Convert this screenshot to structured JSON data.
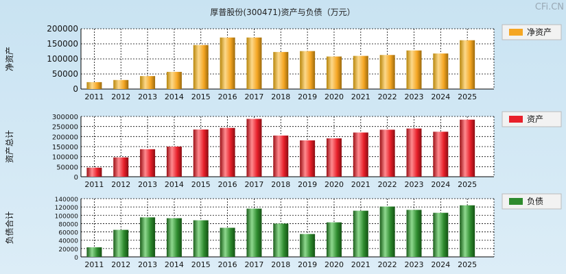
{
  "title": "厚普股份(300471)资产与负债（万元）",
  "watermark": "CFi.CN",
  "chart_data": [
    {
      "type": "bar",
      "name": "net-assets",
      "ylabel": "净资产",
      "legend": "净资产",
      "color": "#f5a623",
      "categories": [
        "2011",
        "2012",
        "2013",
        "2014",
        "2015",
        "2016",
        "2017",
        "2018",
        "2019",
        "2020",
        "2021",
        "2022",
        "2023",
        "2024",
        "2025"
      ],
      "values": [
        23000,
        30000,
        43000,
        57000,
        146000,
        171000,
        171000,
        123000,
        126000,
        108000,
        110000,
        113000,
        128000,
        118000,
        162000
      ],
      "ylim": [
        0,
        200000
      ],
      "yticks": [
        0,
        50000,
        100000,
        150000,
        200000
      ]
    },
    {
      "type": "bar",
      "name": "total-assets",
      "ylabel": "资产总计",
      "legend": "资产",
      "color": "#e8202a",
      "categories": [
        "2011",
        "2012",
        "2013",
        "2014",
        "2015",
        "2016",
        "2017",
        "2018",
        "2019",
        "2020",
        "2021",
        "2022",
        "2023",
        "2024",
        "2025"
      ],
      "values": [
        45000,
        96000,
        137000,
        150000,
        235000,
        243000,
        288000,
        205000,
        181000,
        191000,
        220000,
        234000,
        240000,
        224000,
        284000
      ],
      "ylim": [
        0,
        300000
      ],
      "yticks": [
        0,
        50000,
        100000,
        150000,
        200000,
        250000,
        300000
      ]
    },
    {
      "type": "bar",
      "name": "total-liabilities",
      "ylabel": "负债合计",
      "legend": "负债",
      "color": "#2e8b2e",
      "categories": [
        "2011",
        "2012",
        "2013",
        "2014",
        "2015",
        "2016",
        "2017",
        "2018",
        "2019",
        "2020",
        "2021",
        "2022",
        "2023",
        "2024",
        "2025"
      ],
      "values": [
        23000,
        65000,
        95000,
        93000,
        88000,
        70000,
        116000,
        80000,
        55000,
        83000,
        111000,
        121000,
        113000,
        106000,
        124000
      ],
      "ylim": [
        0,
        140000
      ],
      "yticks": [
        0,
        20000,
        40000,
        60000,
        80000,
        100000,
        120000,
        140000
      ]
    }
  ]
}
